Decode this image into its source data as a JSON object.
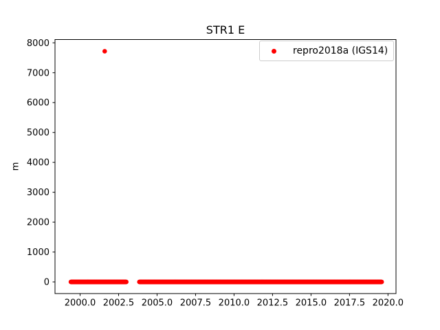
{
  "figure": {
    "background_color": "#ffffff",
    "axis_color": "#000000"
  },
  "chart_data": {
    "type": "scatter",
    "title": "STR1 E",
    "xlabel": "",
    "ylabel": "m",
    "xlim": [
      1998.37,
      2020.52
    ],
    "ylim": [
      -390,
      8110
    ],
    "xtick_values": [
      2000.0,
      2002.5,
      2005.0,
      2007.5,
      2010.0,
      2012.5,
      2015.0,
      2017.5,
      2020.0
    ],
    "xtick_labels": [
      "2000.0",
      "2002.5",
      "2005.0",
      "2007.5",
      "2010.0",
      "2012.5",
      "2015.0",
      "2017.5",
      "2020.0"
    ],
    "ytick_values": [
      0,
      1000,
      2000,
      3000,
      4000,
      5000,
      6000,
      7000,
      8000
    ],
    "ytick_labels": [
      "0",
      "1000",
      "2000",
      "3000",
      "4000",
      "5000",
      "6000",
      "7000",
      "8000"
    ],
    "grid": false,
    "legend": {
      "position": "upper right",
      "border_color": "#cccccc",
      "entries": [
        {
          "label": "repro2018a (IGS14)",
          "color": "#ff0000",
          "marker": "dot"
        }
      ]
    },
    "series": [
      {
        "name": "repro2018a (IGS14)",
        "color": "#ff0000",
        "marker": "point",
        "marker_radius_px": 3.3,
        "description": "Dense daily position solutions plotted at y ≈ 0 m over two time spans with a data gap between them, plus one large outlier point.",
        "dense_segments": [
          {
            "x_start": 1999.4,
            "x_end": 2003.0,
            "y": 0
          },
          {
            "x_start": 2003.85,
            "x_end": 2019.6,
            "y": 0
          }
        ],
        "sample_step_years": 0.02,
        "outliers": [
          {
            "x": 2001.6,
            "y": 7720
          }
        ]
      }
    ]
  }
}
